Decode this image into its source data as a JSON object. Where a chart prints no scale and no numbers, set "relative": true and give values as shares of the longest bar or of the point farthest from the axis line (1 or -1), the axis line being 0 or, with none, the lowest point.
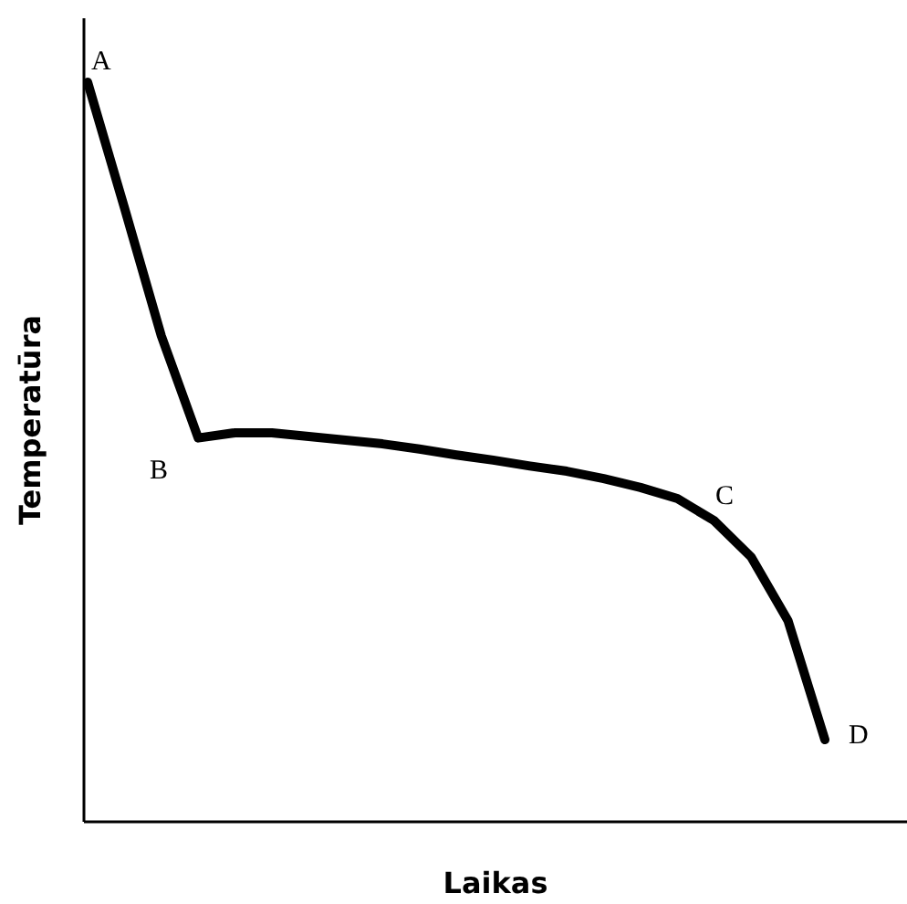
{
  "chart_data": {
    "type": "line",
    "xlabel": "Laikas",
    "ylabel": "Temperatūra",
    "relative": true,
    "categories": [
      null,
      null,
      null,
      null,
      null,
      null,
      null,
      null,
      null,
      null,
      null,
      null,
      null,
      null,
      null,
      null,
      null,
      null,
      null,
      null,
      null
    ],
    "series": [
      {
        "color": "#000000",
        "values": [
          1.0,
          0.83,
          0.657,
          0.519,
          0.526,
          0.526,
          0.521,
          0.516,
          0.511,
          0.504,
          0.496,
          0.489,
          0.481,
          0.474,
          0.464,
          0.452,
          0.437,
          0.407,
          0.358,
          0.272,
          0.111
        ]
      }
    ],
    "annotations": [
      "A",
      "B",
      "C",
      "D"
    ],
    "marker": "none",
    "line_style": "solid"
  }
}
